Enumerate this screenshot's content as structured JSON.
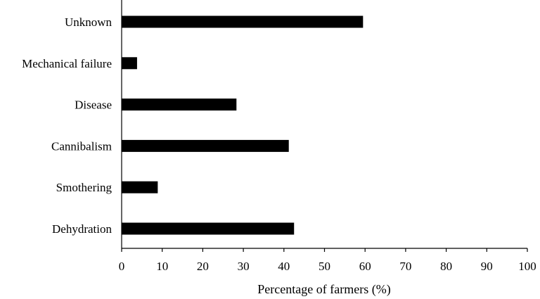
{
  "chart_data": {
    "type": "bar",
    "orientation": "horizontal",
    "categories": [
      "Unknown",
      "Mechanical failure",
      "Disease",
      "Cannibalism",
      "Smothering",
      "Dehydration"
    ],
    "values": [
      59.5,
      3.8,
      28.3,
      41.2,
      8.9,
      42.5
    ],
    "title": "",
    "xlabel": "Percentage of farmers (%)",
    "ylabel": "",
    "xlim": [
      0,
      100
    ],
    "xticks": [
      "0",
      "10",
      "20",
      "30",
      "40",
      "50",
      "60",
      "70",
      "80",
      "90",
      "100"
    ],
    "grid": false,
    "legend": "none",
    "bar_color": "#000000"
  }
}
